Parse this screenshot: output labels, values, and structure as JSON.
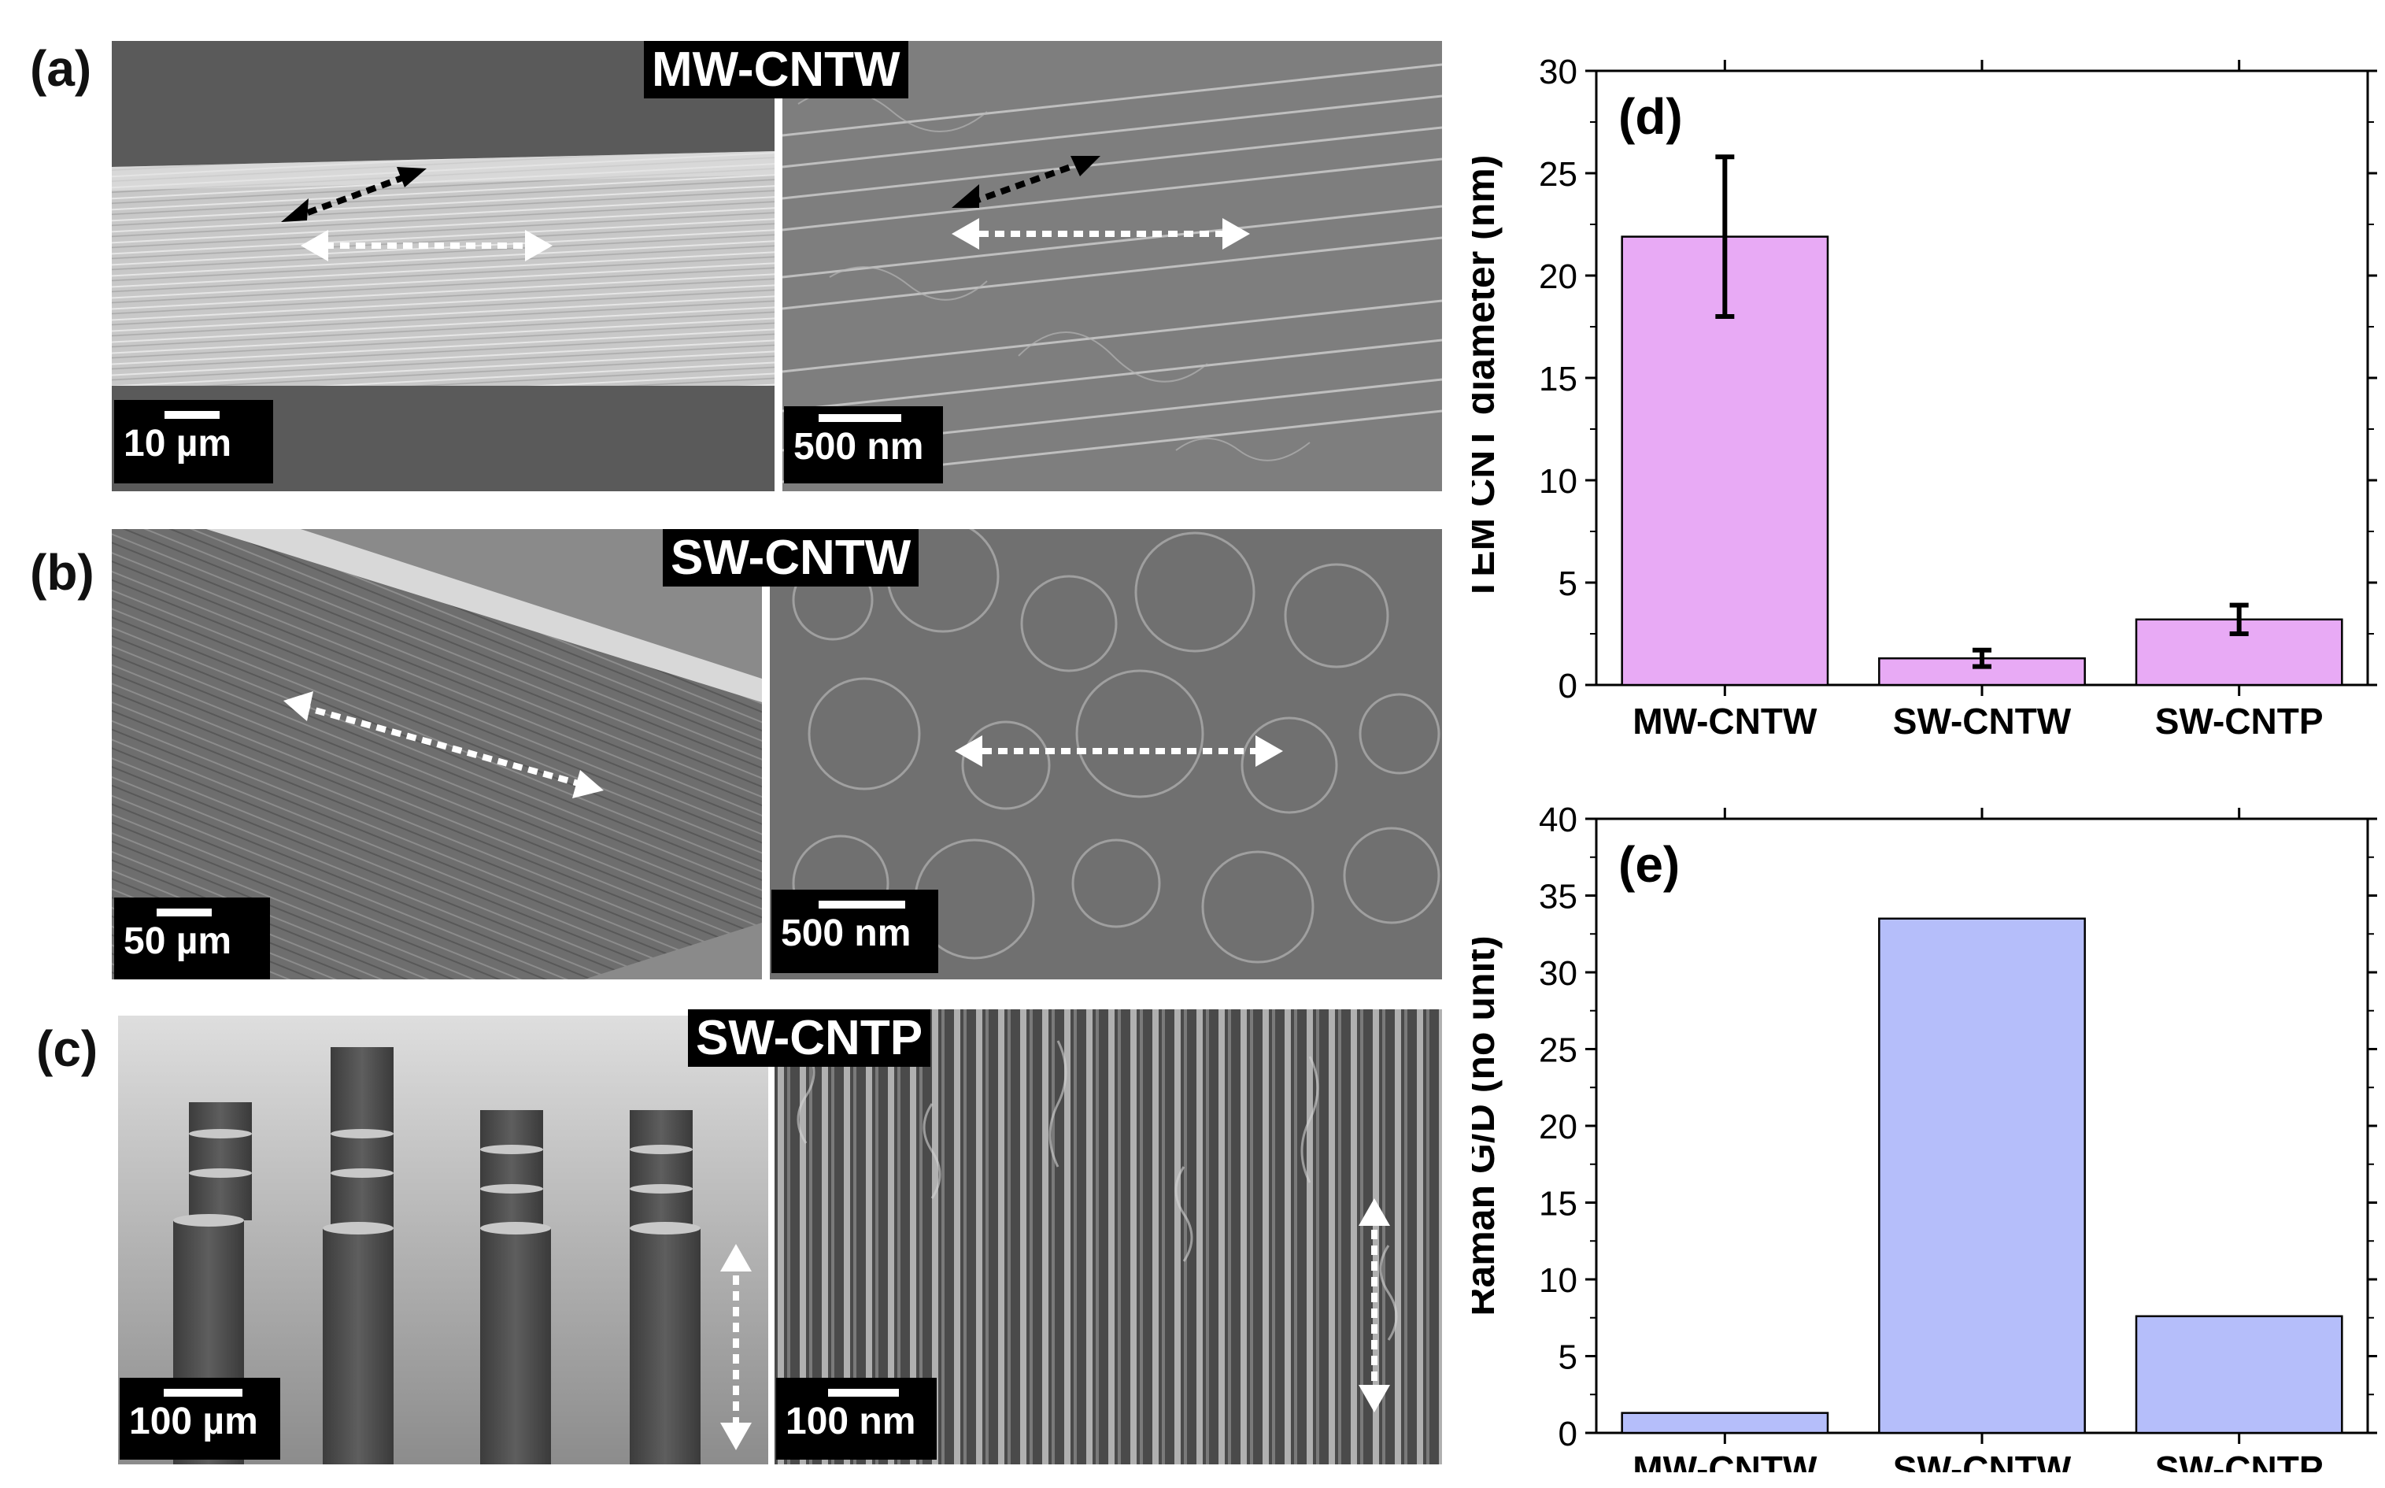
{
  "panels": {
    "a": {
      "letter": "(a)",
      "sample": "MW-CNTW",
      "scale_left": "10 µm",
      "scale_right": "500 nm"
    },
    "b": {
      "letter": "(b)",
      "sample": "SW-CNTW",
      "scale_left": "50 µm",
      "scale_right": "500 nm"
    },
    "c": {
      "letter": "(c)",
      "sample": "SW-CNTP",
      "scale_left": "100 µm",
      "scale_right": "100 nm"
    }
  },
  "chart_data": [
    {
      "panel_label": "(d)",
      "type": "bar",
      "categories": [
        "MW-CNTW",
        "SW-CNTW",
        "SW-CNTP"
      ],
      "values": [
        21.9,
        1.3,
        3.2
      ],
      "errors": [
        3.9,
        0.4,
        0.7
      ],
      "ylabel": "TEM CNT diameter (nm)",
      "xlabel": "",
      "ylim": [
        0,
        30
      ],
      "yticks": [
        0,
        5,
        10,
        15,
        20,
        25,
        30
      ],
      "bar_color": "#e8aaf5",
      "grid": false
    },
    {
      "panel_label": "(e)",
      "type": "bar",
      "categories": [
        "MW-CNTW",
        "SW-CNTW",
        "SW-CNTP"
      ],
      "values": [
        1.3,
        33.5,
        7.6
      ],
      "ylabel": "Raman G/D (no unit)",
      "xlabel": "",
      "ylim": [
        0,
        40
      ],
      "yticks": [
        0,
        5,
        10,
        15,
        20,
        25,
        30,
        35,
        40
      ],
      "bar_color": "#b5befa",
      "grid": false
    }
  ]
}
